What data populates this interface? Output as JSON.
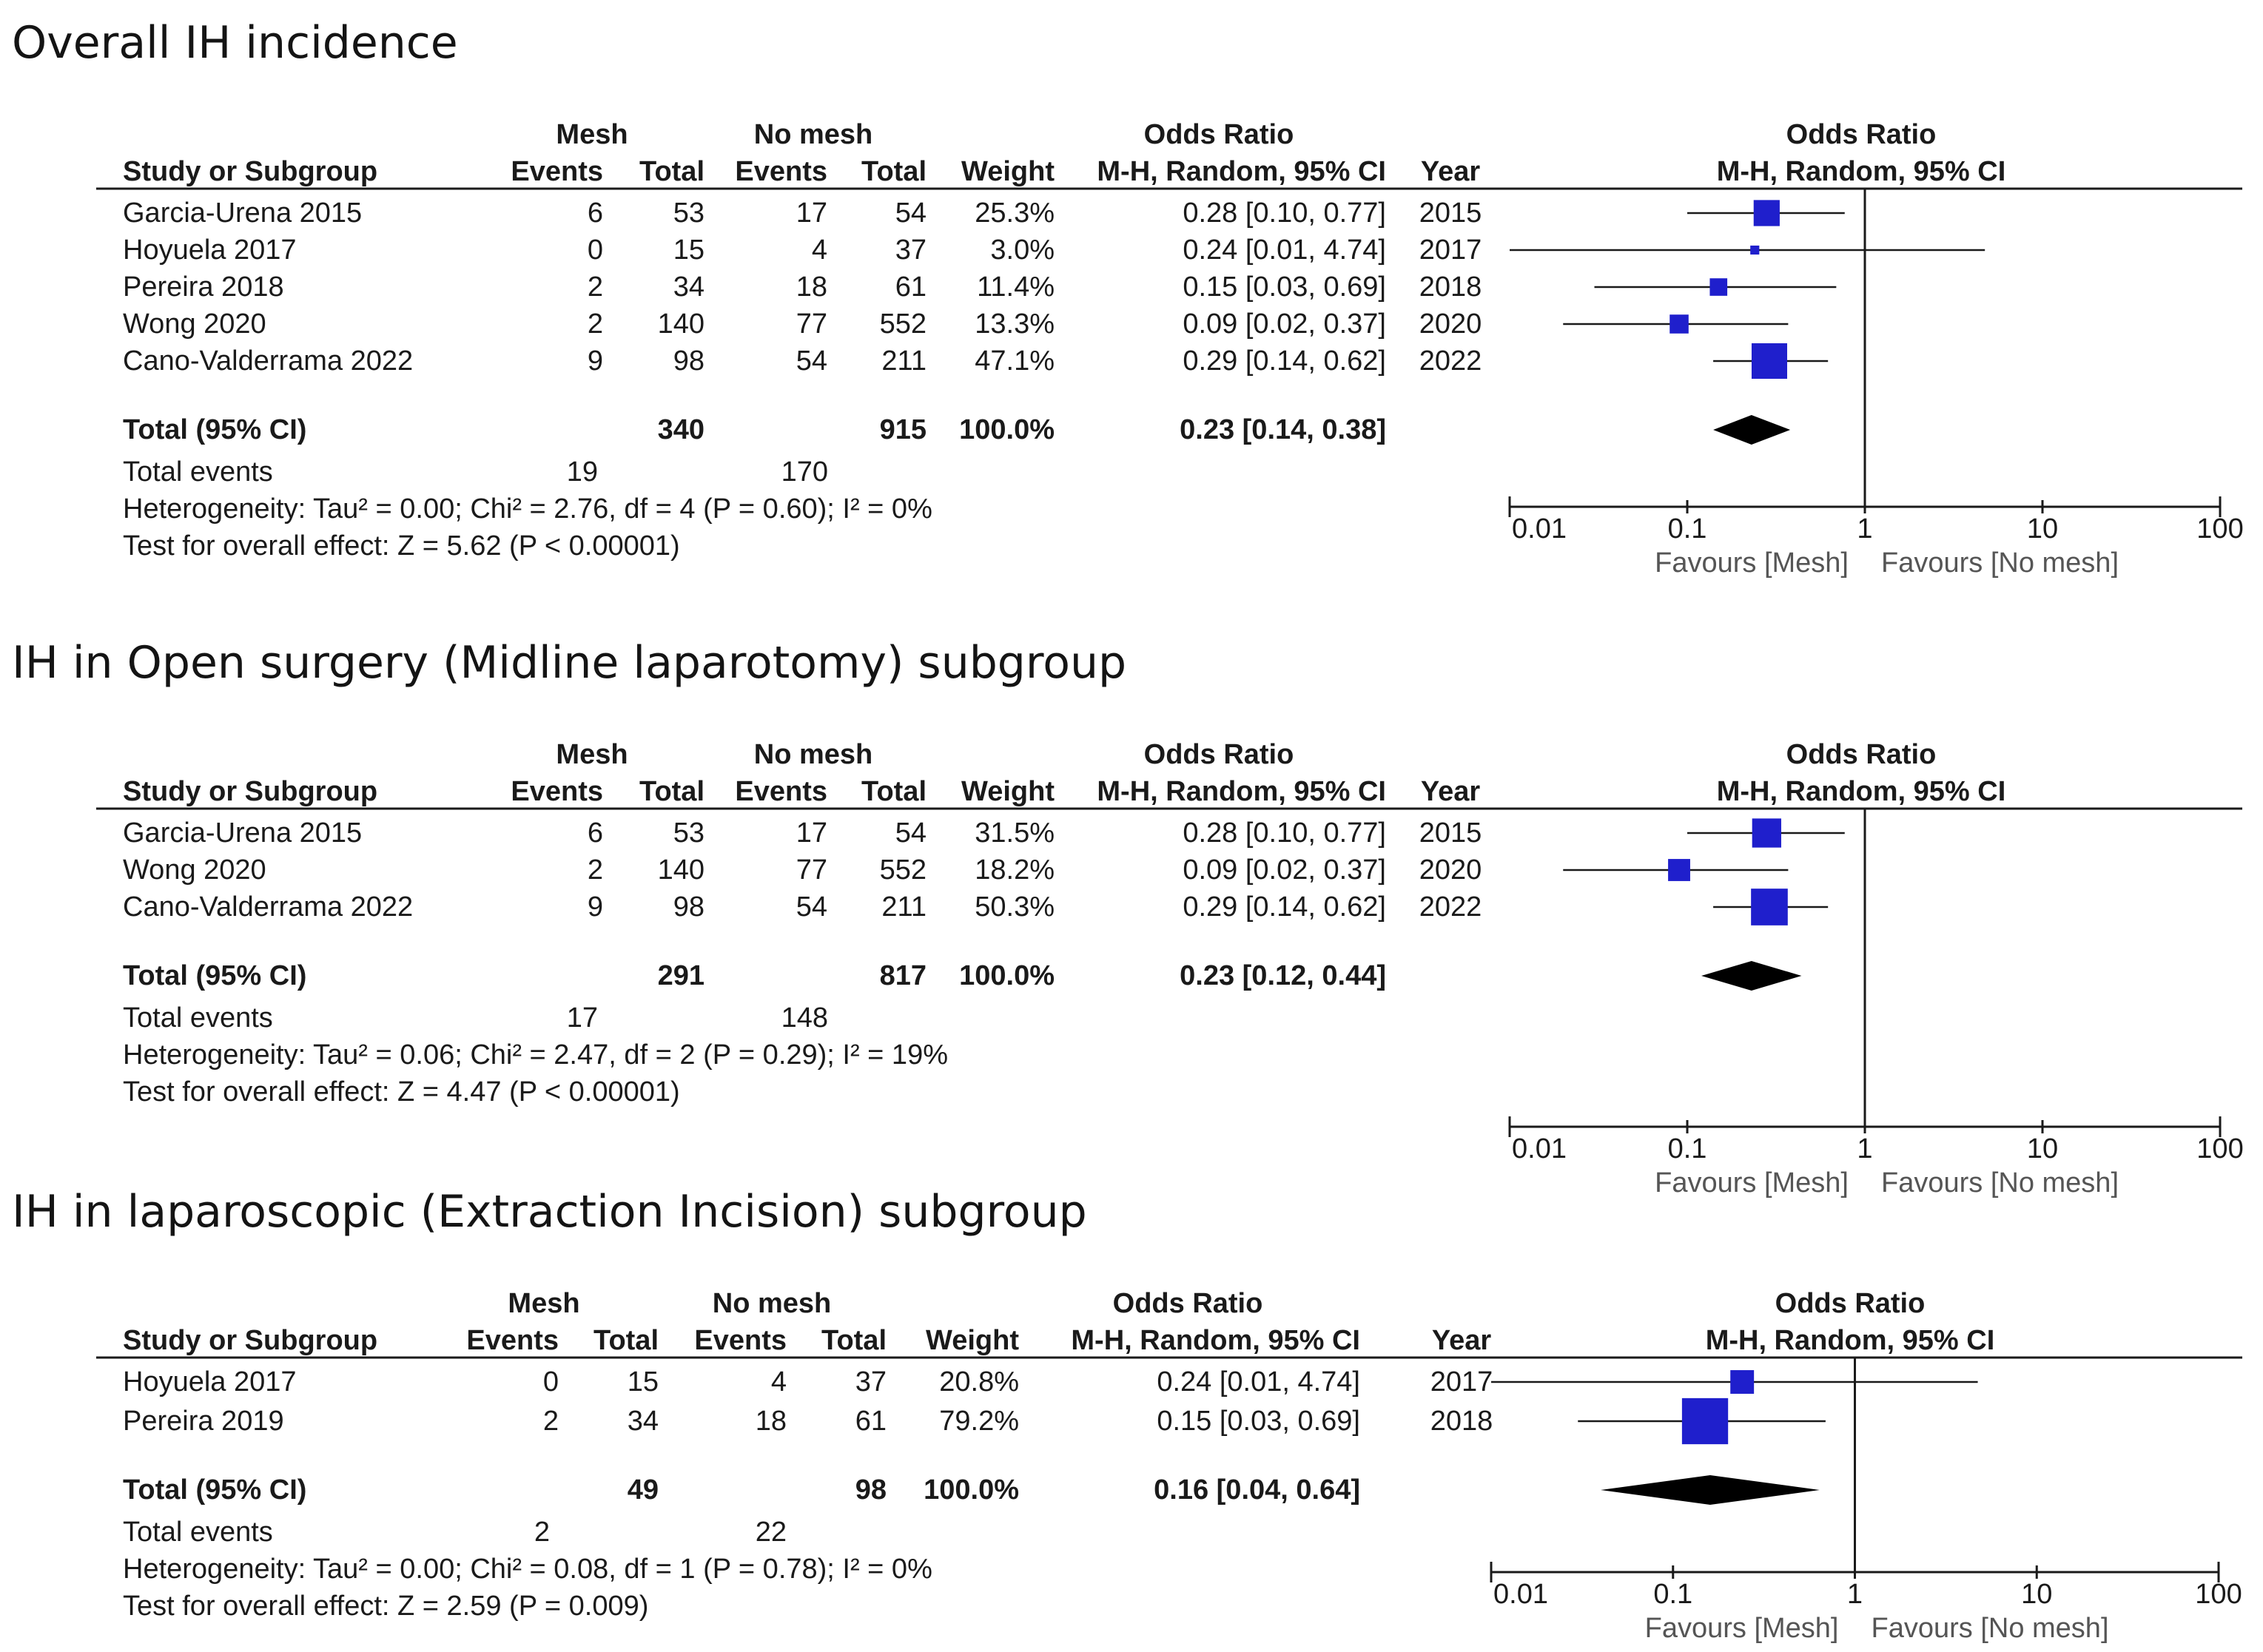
{
  "colors": {
    "marker": "#1f1fcc",
    "line": "#1a1a1a",
    "diamond": "#000000"
  },
  "chart_data": [
    {
      "type": "forest",
      "title": "Overall IH incidence",
      "headers": {
        "group1": "Mesh",
        "group2": "No mesh",
        "study": "Study or Subgroup",
        "events": "Events",
        "total": "Total",
        "weight": "Weight",
        "or_title": "Odds Ratio",
        "or_method": "M-H, Random, 95% CI",
        "year": "Year",
        "plot_title": "Odds Ratio",
        "plot_method": "M-H, Random, 95% CI"
      },
      "studies": [
        {
          "name": "Garcia-Urena 2015",
          "e1": "6",
          "t1": "53",
          "e2": "17",
          "t2": "54",
          "weight": "25.3%",
          "ci_text": "0.28 [0.10, 0.77]",
          "year": "2015",
          "or": 0.28,
          "lo": 0.1,
          "hi": 0.77,
          "w": 25.3
        },
        {
          "name": "Hoyuela 2017",
          "e1": "0",
          "t1": "15",
          "e2": "4",
          "t2": "37",
          "weight": "3.0%",
          "ci_text": "0.24 [0.01, 4.74]",
          "year": "2017",
          "or": 0.24,
          "lo": 0.01,
          "hi": 4.74,
          "w": 3.0
        },
        {
          "name": "Pereira 2018",
          "e1": "2",
          "t1": "34",
          "e2": "18",
          "t2": "61",
          "weight": "11.4%",
          "ci_text": "0.15 [0.03, 0.69]",
          "year": "2018",
          "or": 0.15,
          "lo": 0.03,
          "hi": 0.69,
          "w": 11.4
        },
        {
          "name": "Wong 2020",
          "e1": "2",
          "t1": "140",
          "e2": "77",
          "t2": "552",
          "weight": "13.3%",
          "ci_text": "0.09 [0.02, 0.37]",
          "year": "2020",
          "or": 0.09,
          "lo": 0.02,
          "hi": 0.37,
          "w": 13.3
        },
        {
          "name": "Cano-Valderrama 2022",
          "e1": "9",
          "t1": "98",
          "e2": "54",
          "t2": "211",
          "weight": "47.1%",
          "ci_text": "0.29 [0.14, 0.62]",
          "year": "2022",
          "or": 0.29,
          "lo": 0.14,
          "hi": 0.62,
          "w": 47.1
        }
      ],
      "total": {
        "label": "Total (95% CI)",
        "t1": "340",
        "t2": "915",
        "weight": "100.0%",
        "ci_text": "0.23 [0.14, 0.38]",
        "or": 0.23,
        "lo": 0.14,
        "hi": 0.38
      },
      "total_events": {
        "label": "Total events",
        "e1": "19",
        "e2": "170"
      },
      "heterogeneity": "Heterogeneity: Tau² = 0.00; Chi² = 2.76, df = 4 (P = 0.60); I² = 0%",
      "overall_effect": "Test for overall effect: Z = 5.62 (P < 0.00001)",
      "axis": {
        "scale": "log",
        "xlim": [
          0.01,
          100
        ],
        "ticks": [
          "0.01",
          "0.1",
          "1",
          "10",
          "100"
        ],
        "favours_left": "Favours [Mesh]",
        "favours_right": "Favours [No mesh]"
      }
    },
    {
      "type": "forest",
      "title": "IH in Open surgery (Midline laparotomy) subgroup",
      "headers": {
        "group1": "Mesh",
        "group2": "No mesh",
        "study": "Study or Subgroup",
        "events": "Events",
        "total": "Total",
        "weight": "Weight",
        "or_title": "Odds Ratio",
        "or_method": "M-H, Random, 95% CI",
        "year": "Year",
        "plot_title": "Odds Ratio",
        "plot_method": "M-H, Random, 95% CI"
      },
      "studies": [
        {
          "name": "Garcia-Urena 2015",
          "e1": "6",
          "t1": "53",
          "e2": "17",
          "t2": "54",
          "weight": "31.5%",
          "ci_text": "0.28 [0.10, 0.77]",
          "year": "2015",
          "or": 0.28,
          "lo": 0.1,
          "hi": 0.77,
          "w": 31.5
        },
        {
          "name": "Wong 2020",
          "e1": "2",
          "t1": "140",
          "e2": "77",
          "t2": "552",
          "weight": "18.2%",
          "ci_text": "0.09 [0.02, 0.37]",
          "year": "2020",
          "or": 0.09,
          "lo": 0.02,
          "hi": 0.37,
          "w": 18.2
        },
        {
          "name": "Cano-Valderrama 2022",
          "e1": "9",
          "t1": "98",
          "e2": "54",
          "t2": "211",
          "weight": "50.3%",
          "ci_text": "0.29 [0.14, 0.62]",
          "year": "2022",
          "or": 0.29,
          "lo": 0.14,
          "hi": 0.62,
          "w": 50.3
        }
      ],
      "total": {
        "label": "Total (95% CI)",
        "t1": "291",
        "t2": "817",
        "weight": "100.0%",
        "ci_text": "0.23 [0.12, 0.44]",
        "or": 0.23,
        "lo": 0.12,
        "hi": 0.44
      },
      "total_events": {
        "label": "Total events",
        "e1": "17",
        "e2": "148"
      },
      "heterogeneity": "Heterogeneity: Tau² = 0.06; Chi² = 2.47, df = 2 (P = 0.29); I² = 19%",
      "overall_effect": "Test for overall effect: Z = 4.47 (P < 0.00001)",
      "axis": {
        "scale": "log",
        "xlim": [
          0.01,
          100
        ],
        "ticks": [
          "0.01",
          "0.1",
          "1",
          "10",
          "100"
        ],
        "favours_left": "Favours [Mesh]",
        "favours_right": "Favours [No mesh]"
      }
    },
    {
      "type": "forest",
      "title": "IH in laparoscopic (Extraction Incision) subgroup",
      "headers": {
        "group1": "Mesh",
        "group2": "No mesh",
        "study": "Study or Subgroup",
        "events": "Events",
        "total": "Total",
        "weight": "Weight",
        "or_title": "Odds Ratio",
        "or_method": "M-H, Random, 95% CI",
        "year": "Year",
        "plot_title": "Odds Ratio",
        "plot_method": "M-H, Random, 95% CI"
      },
      "studies": [
        {
          "name": "Hoyuela 2017",
          "e1": "0",
          "t1": "15",
          "e2": "4",
          "t2": "37",
          "weight": "20.8%",
          "ci_text": "0.24 [0.01, 4.74]",
          "year": "2017",
          "or": 0.24,
          "lo": 0.01,
          "hi": 4.74,
          "w": 20.8
        },
        {
          "name": "Pereira 2019",
          "e1": "2",
          "t1": "34",
          "e2": "18",
          "t2": "61",
          "weight": "79.2%",
          "ci_text": "0.15 [0.03, 0.69]",
          "year": "2018",
          "or": 0.15,
          "lo": 0.03,
          "hi": 0.69,
          "w": 79.2
        }
      ],
      "total": {
        "label": "Total (95% CI)",
        "t1": "49",
        "t2": "98",
        "weight": "100.0%",
        "ci_text": "0.16 [0.04, 0.64]",
        "or": 0.16,
        "lo": 0.04,
        "hi": 0.64
      },
      "total_events": {
        "label": "Total events",
        "e1": "2",
        "e2": "22"
      },
      "heterogeneity": "Heterogeneity: Tau² = 0.00; Chi² = 0.08, df = 1 (P = 0.78); I² = 0%",
      "overall_effect": "Test for overall effect: Z = 2.59 (P = 0.009)",
      "axis": {
        "scale": "log",
        "xlim": [
          0.01,
          100
        ],
        "ticks": [
          "0.01",
          "0.1",
          "1",
          "10",
          "100"
        ],
        "favours_left": "Favours [Mesh]",
        "favours_right": "Favours [No mesh]"
      }
    }
  ]
}
